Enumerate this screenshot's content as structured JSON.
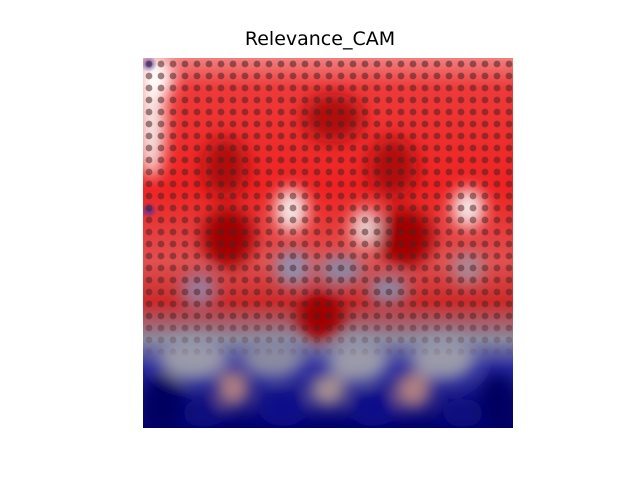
{
  "figure": {
    "title": "Relevance_CAM"
  },
  "heatmap": {
    "colormap": "seismic",
    "colors": {
      "deep_blue": "#00006e",
      "blue": "#1a1aa8",
      "gray": "#8a8a9a",
      "light": "#f2dede",
      "red": "#ee1c1c",
      "dark_red": "#9a0000",
      "dot": "#4a2a2a"
    },
    "overlay": "dot-grid"
  }
}
